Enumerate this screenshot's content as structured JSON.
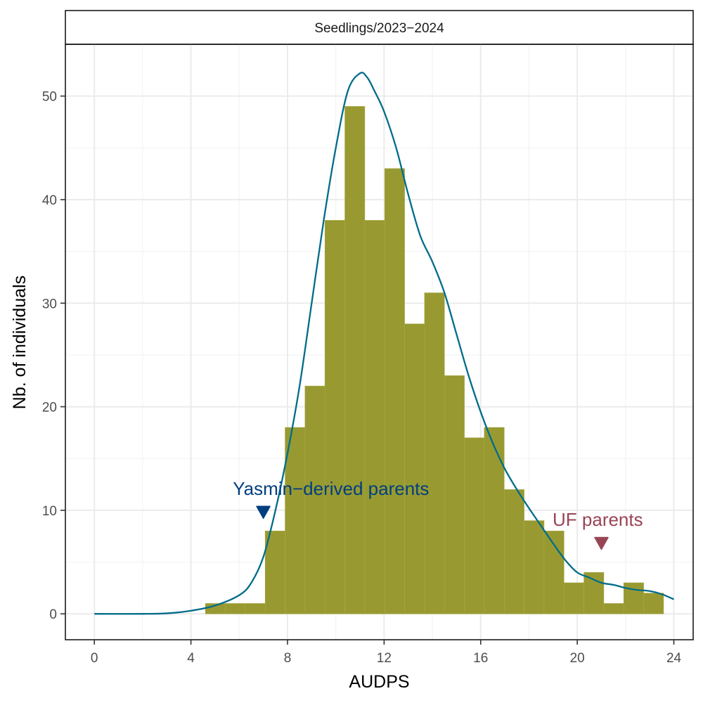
{
  "chart_data": {
    "type": "bar",
    "title": "",
    "facet_label": "Seedlings/2023−2024",
    "xlabel": "AUDPS",
    "ylabel": "Nb. of individuals",
    "xlim": [
      -1.2,
      24.8
    ],
    "ylim": [
      -2.5,
      55
    ],
    "x_ticks": [
      0,
      4,
      8,
      12,
      16,
      20,
      24
    ],
    "y_ticks": [
      0,
      10,
      20,
      30,
      40,
      50
    ],
    "grid": true,
    "bin_width": 0.825,
    "bins": [
      {
        "x0": 4.6,
        "x1": 5.425,
        "count": 1
      },
      {
        "x0": 5.425,
        "x1": 6.25,
        "count": 1
      },
      {
        "x0": 6.25,
        "x1": 7.075,
        "count": 1
      },
      {
        "x0": 7.075,
        "x1": 7.9,
        "count": 8
      },
      {
        "x0": 7.9,
        "x1": 8.725,
        "count": 18
      },
      {
        "x0": 8.725,
        "x1": 9.55,
        "count": 22
      },
      {
        "x0": 9.55,
        "x1": 10.375,
        "count": 38
      },
      {
        "x0": 10.375,
        "x1": 11.2,
        "count": 49
      },
      {
        "x0": 11.2,
        "x1": 12.025,
        "count": 38
      },
      {
        "x0": 12.025,
        "x1": 12.85,
        "count": 43
      },
      {
        "x0": 12.85,
        "x1": 13.675,
        "count": 28
      },
      {
        "x0": 13.675,
        "x1": 14.5,
        "count": 31
      },
      {
        "x0": 14.5,
        "x1": 15.325,
        "count": 23
      },
      {
        "x0": 15.325,
        "x1": 16.15,
        "count": 17
      },
      {
        "x0": 16.15,
        "x1": 16.975,
        "count": 18
      },
      {
        "x0": 16.975,
        "x1": 17.8,
        "count": 12
      },
      {
        "x0": 17.8,
        "x1": 18.625,
        "count": 9
      },
      {
        "x0": 18.625,
        "x1": 19.45,
        "count": 8
      },
      {
        "x0": 19.45,
        "x1": 20.275,
        "count": 3
      },
      {
        "x0": 20.275,
        "x1": 21.1,
        "count": 4
      },
      {
        "x0": 21.1,
        "x1": 21.925,
        "count": 1
      },
      {
        "x0": 21.925,
        "x1": 22.75,
        "count": 3
      },
      {
        "x0": 22.75,
        "x1": 23.575,
        "count": 2
      }
    ],
    "density_curve": {
      "x": [
        0,
        2,
        3,
        4,
        5,
        6,
        6.5,
        7,
        7.5,
        8,
        8.5,
        9,
        9.5,
        10,
        10.5,
        11,
        11.3,
        11.6,
        12,
        12.5,
        13,
        13.5,
        14,
        14.5,
        15,
        15.5,
        16,
        16.5,
        17,
        17.5,
        18,
        18.5,
        19,
        19.5,
        20,
        20.5,
        21,
        21.5,
        22,
        22.5,
        23,
        23.5,
        24
      ],
      "y": [
        0,
        0,
        0.05,
        0.3,
        0.8,
        1.8,
        3,
        5.5,
        10,
        15.5,
        22,
        30,
        38,
        45,
        50.5,
        52.2,
        51.8,
        50.5,
        48.5,
        45,
        40.5,
        36.5,
        34,
        31,
        27,
        23,
        19.5,
        16.5,
        14,
        12,
        10.2,
        8.5,
        6.8,
        5.2,
        4,
        3.5,
        3,
        2.8,
        2.5,
        2.3,
        2.2,
        1.9,
        1.4
      ]
    },
    "colors": {
      "bar_fill": "#989A31",
      "bar_edge": "#A5A743",
      "density_line": "#006C8A",
      "yasmin": "#003F7F",
      "uf": "#994455",
      "grid_major": "#EBEBEB",
      "grid_minor": "#F3F3F3"
    },
    "annotations": [
      {
        "label": "Yasmin−derived parents",
        "x": 7,
        "y": 9.8,
        "text_x": 9.8,
        "text_y": 11.5,
        "color_key": "yasmin"
      },
      {
        "label": "UF parents",
        "x": 21,
        "y": 6.8,
        "text_x": 20.85,
        "text_y": 8.5,
        "color_key": "uf"
      }
    ]
  }
}
